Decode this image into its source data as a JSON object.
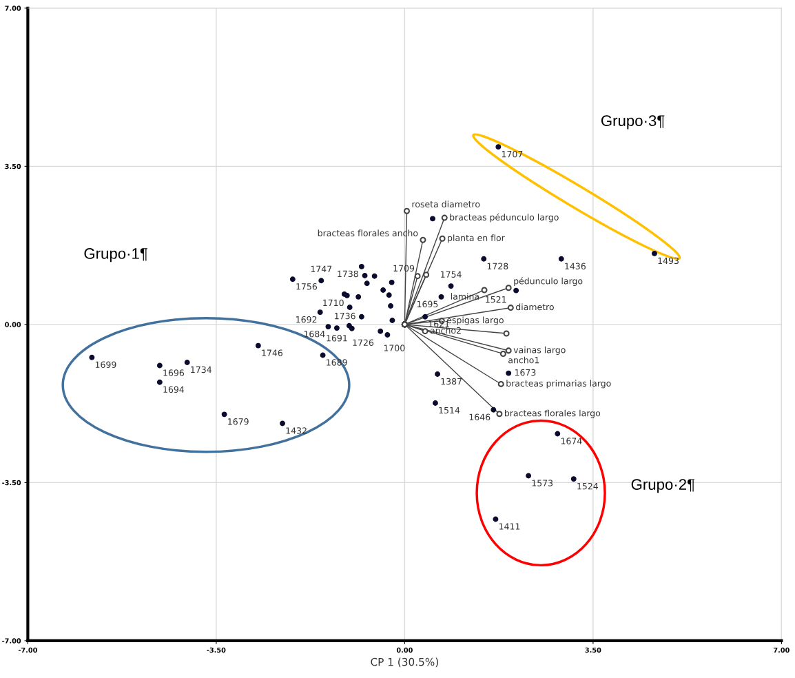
{
  "chart_data": {
    "type": "scatter",
    "xlabel": "CP 1 (30.5%)",
    "xlim": [
      -7,
      7
    ],
    "ylim": [
      -7,
      7
    ],
    "xticks": [
      {
        "value": -7,
        "label": "-7.00"
      },
      {
        "value": -3.5,
        "label": "-3.50"
      },
      {
        "value": 0,
        "label": "0.00"
      },
      {
        "value": 3.5,
        "label": "3.50"
      },
      {
        "value": 7,
        "label": "7.00"
      }
    ],
    "yticks": [
      {
        "value": -7,
        "label": "-7.00"
      },
      {
        "value": -3.5,
        "label": "-3.50"
      },
      {
        "value": 0,
        "label": "0.00"
      },
      {
        "value": 3.5,
        "label": "3.50"
      },
      {
        "value": 7,
        "label": "7.00"
      }
    ],
    "grid": true,
    "marker": "circle",
    "annotations": [
      "Grupo·1¶",
      "Grupo·2¶",
      "Grupo·3¶",
      {
        "text": "1707",
        "x": 1.74,
        "y": 3.93
      },
      {
        "text": "1493",
        "x": 4.64,
        "y": 1.57
      },
      {
        "text": "1436",
        "x": 2.91,
        "y": 1.45
      },
      {
        "text": "1728",
        "x": 1.47,
        "y": 1.45
      },
      {
        "text": "1754",
        "x": 0.86,
        "y": 0.85
      },
      {
        "text": "1709",
        "x": 0.24,
        "y": 1.07
      },
      {
        "text": "1695",
        "x": 0.68,
        "y": 0.61
      },
      {
        "text": "1621",
        "x": 0.38,
        "y": 0.17
      },
      {
        "text": "1521",
        "x": 1.95,
        "y": 0.38
      },
      {
        "text": "1387",
        "x": 0.61,
        "y": -1.1
      },
      {
        "text": "1514",
        "x": 0.57,
        "y": -1.74
      },
      {
        "text": "1646",
        "x": 1.65,
        "y": -1.89
      },
      {
        "text": "1673",
        "x": 1.93,
        "y": -1.08
      },
      {
        "text": "1674",
        "x": 2.84,
        "y": -2.42
      },
      {
        "text": "1573",
        "x": 2.3,
        "y": -3.35
      },
      {
        "text": "1524",
        "x": 3.14,
        "y": -3.42
      },
      {
        "text": "1411",
        "x": 1.69,
        "y": -4.31
      },
      {
        "text": "1699",
        "x": -5.81,
        "y": -0.73
      },
      {
        "text": "1696",
        "x": -4.55,
        "y": -0.91
      },
      {
        "text": "1734",
        "x": -4.04,
        "y": -0.84
      },
      {
        "text": "1694",
        "x": -4.55,
        "y": -1.28
      },
      {
        "text": "1746",
        "x": -2.72,
        "y": -0.47
      },
      {
        "text": "1689",
        "x": -1.52,
        "y": -0.68
      },
      {
        "text": "1679",
        "x": -3.35,
        "y": -1.99
      },
      {
        "text": "1432",
        "x": -2.27,
        "y": -2.19
      },
      {
        "text": "1756",
        "x": -2.08,
        "y": 1.0
      },
      {
        "text": "1747",
        "x": -1.55,
        "y": 0.97
      },
      {
        "text": "1738",
        "x": -0.8,
        "y": 1.28
      },
      {
        "text": "1710",
        "x": -1.07,
        "y": 0.64
      },
      {
        "text": "1692",
        "x": -1.57,
        "y": 0.27
      },
      {
        "text": "1736",
        "x": -0.8,
        "y": 0.17
      },
      {
        "text": "1684",
        "x": -1.42,
        "y": -0.05
      },
      {
        "text": "1691",
        "x": -1.26,
        "y": -0.08
      },
      {
        "text": "1726",
        "x": -1.03,
        "y": -0.03
      },
      {
        "text": "1700",
        "x": -0.45,
        "y": -0.15
      }
    ],
    "series": [
      {
        "type": "line",
        "name": "roseta diametro",
        "color": "#444444",
        "x": [
          0,
          0.04
        ],
        "values": [
          0,
          2.51
        ]
      },
      {
        "type": "line",
        "name": "bracteas pédunculo largo",
        "color": "#444444",
        "x": [
          0,
          0.74
        ],
        "values": [
          0,
          2.36
        ]
      },
      {
        "type": "line",
        "name": "planta en flor",
        "color": "#444444",
        "x": [
          0,
          0.7
        ],
        "values": [
          0,
          1.9
        ]
      },
      {
        "type": "line",
        "name": "bracteas florales ancho",
        "color": "#444444",
        "x": [
          0,
          0.34
        ],
        "values": [
          0,
          1.87
        ]
      },
      {
        "type": "line",
        "color": "#444444",
        "x": [
          0,
          0.24
        ],
        "values": [
          0,
          1.07
        ]
      },
      {
        "type": "line",
        "color": "#444444",
        "x": [
          0,
          0.4
        ],
        "values": [
          0,
          1.1
        ]
      },
      {
        "type": "line",
        "name": "lamina",
        "color": "#444444",
        "x": [
          0,
          1.48
        ],
        "values": [
          0,
          0.76
        ]
      },
      {
        "type": "line",
        "name": "pédunculo largo",
        "color": "#444444",
        "x": [
          0,
          1.93
        ],
        "values": [
          0,
          0.81
        ]
      },
      {
        "type": "line",
        "name": "diametro",
        "color": "#444444",
        "x": [
          0,
          1.97
        ],
        "values": [
          0,
          0.37
        ]
      },
      {
        "type": "line",
        "name": "espigas largo",
        "color": "#444444",
        "x": [
          0,
          0.69
        ],
        "values": [
          0,
          0.08
        ]
      },
      {
        "type": "line",
        "color": "#444444",
        "x": [
          0,
          1.89
        ],
        "values": [
          0,
          -0.2
        ]
      },
      {
        "type": "line",
        "name": "vainas largo",
        "color": "#444444",
        "x": [
          0,
          1.93
        ],
        "values": [
          0,
          -0.58
        ]
      },
      {
        "type": "line",
        "name": "ancho1",
        "color": "#444444",
        "x": [
          0,
          1.83
        ],
        "values": [
          0,
          -0.65
        ]
      },
      {
        "type": "line",
        "name": "ancho2",
        "color": "#444444",
        "x": [
          0,
          0.38
        ],
        "values": [
          0,
          -0.15
        ]
      },
      {
        "type": "line",
        "name": "bracteas primarias largo",
        "color": "#444444",
        "x": [
          0,
          1.79
        ],
        "values": [
          0,
          -1.32
        ]
      },
      {
        "type": "line",
        "name": "bracteas florales largo",
        "color": "#444444",
        "x": [
          0,
          1.76
        ],
        "values": [
          0,
          -1.98
        ]
      },
      {
        "color": "#0b0b2e",
        "x": [
          1.74,
          4.64,
          2.91,
          1.47,
          0.86,
          0.68,
          0.38,
          0.52,
          2.07,
          0.61,
          0.57,
          1.65,
          1.93,
          2.84,
          2.3,
          3.14,
          1.69,
          -5.81,
          -4.55,
          -4.04,
          -4.55,
          -2.72,
          -1.52,
          -3.35,
          -2.27,
          -2.08,
          -1.55,
          -0.8,
          -0.74,
          -0.56,
          -0.7,
          -0.24,
          -1.12,
          -1.07,
          -0.86,
          -0.4,
          -0.29,
          -1.02,
          -0.26,
          -1.57,
          -0.8,
          -0.23,
          -1.42,
          -1.26,
          -1.03,
          -0.98,
          -0.45,
          -0.32
        ],
        "values": [
          3.93,
          1.57,
          1.45,
          1.45,
          0.85,
          0.61,
          0.17,
          2.34,
          0.75,
          -1.1,
          -1.74,
          -1.89,
          -1.08,
          -2.42,
          -3.35,
          -3.42,
          -4.31,
          -0.73,
          -0.91,
          -0.84,
          -1.28,
          -0.47,
          -0.68,
          -1.99,
          -2.19,
          1.0,
          0.97,
          1.28,
          1.08,
          1.07,
          0.91,
          0.93,
          0.67,
          0.64,
          0.61,
          0.76,
          0.65,
          0.38,
          0.41,
          0.27,
          0.17,
          0.09,
          -0.05,
          -0.08,
          -0.03,
          -0.09,
          -0.15,
          -0.23
        ]
      }
    ]
  }
}
